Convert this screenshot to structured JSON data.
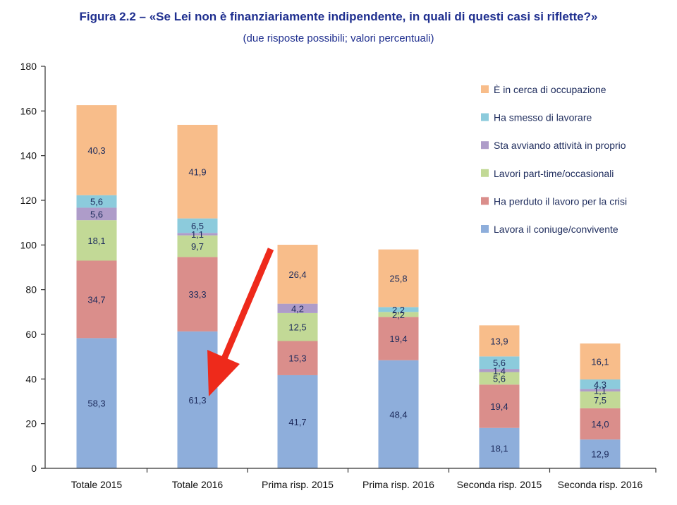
{
  "title": "Figura 2.2 – «Se Lei non è finanziariamente indipendente, in quali di questi casi si riflette?»",
  "subtitle": "(due risposte possibili; valori percentuali)",
  "colors": {
    "coniuge": "#8eaedb",
    "crisi": "#da8e8b",
    "parttime": "#c2d996",
    "attivita": "#ae9cc9",
    "smesso": "#8ccbdc",
    "cerca": "#f8bd8a",
    "arrow": "#ee2a1b",
    "axis": "#333333"
  },
  "chart_data": {
    "type": "bar",
    "stacked": true,
    "categories": [
      "Totale 2015",
      "Totale 2016",
      "Prima risp. 2015",
      "Prima risp. 2016",
      "Seconda risp. 2015",
      "Seconda risp. 2016"
    ],
    "ylim": [
      0,
      180
    ],
    "yticks": [
      0,
      20,
      40,
      60,
      80,
      100,
      120,
      140,
      160,
      180
    ],
    "legend_position": "top-right",
    "series": [
      {
        "key": "coniuge",
        "name": "Lavora il coniuge/convivente",
        "values": [
          58.3,
          61.3,
          41.7,
          48.4,
          18.1,
          12.9
        ],
        "labels": [
          "58,3",
          "61,3",
          "41,7",
          "48,4",
          "18,1",
          "12,9"
        ]
      },
      {
        "key": "crisi",
        "name": "Ha perduto il lavoro per la crisi",
        "values": [
          34.7,
          33.3,
          15.3,
          19.4,
          19.4,
          14.0
        ],
        "labels": [
          "34,7",
          "33,3",
          "15,3",
          "19,4",
          "19,4",
          "14,0"
        ]
      },
      {
        "key": "parttime",
        "name": "Lavori part-time/occasionali",
        "values": [
          18.1,
          9.7,
          12.5,
          2.2,
          5.6,
          7.5
        ],
        "labels": [
          "18,1",
          "9,7",
          "12,5",
          "2,2",
          "5,6",
          "7,5"
        ]
      },
      {
        "key": "attivita",
        "name": "Sta avviando attività in proprio",
        "values": [
          5.6,
          1.1,
          4.2,
          0.0,
          1.4,
          1.1
        ],
        "labels": [
          "5,6",
          "1,1",
          "4,2",
          "",
          "1,4",
          "1,1"
        ]
      },
      {
        "key": "smesso",
        "name": "Ha smesso di lavorare",
        "values": [
          5.6,
          6.5,
          0.0,
          2.2,
          5.6,
          4.3
        ],
        "labels": [
          "5,6",
          "6,5",
          "",
          "2,2",
          "5,6",
          "4,3"
        ]
      },
      {
        "key": "cerca",
        "name": "È in cerca di occupazione",
        "values": [
          40.3,
          41.9,
          26.4,
          25.8,
          13.9,
          16.1
        ],
        "labels": [
          "40,3",
          "41,9",
          "26,4",
          "25,8",
          "13,9",
          "16,1"
        ]
      }
    ],
    "annotations": [
      {
        "type": "arrow",
        "description": "red arrow pointing at Totale 2016 coniuge segment"
      }
    ]
  }
}
